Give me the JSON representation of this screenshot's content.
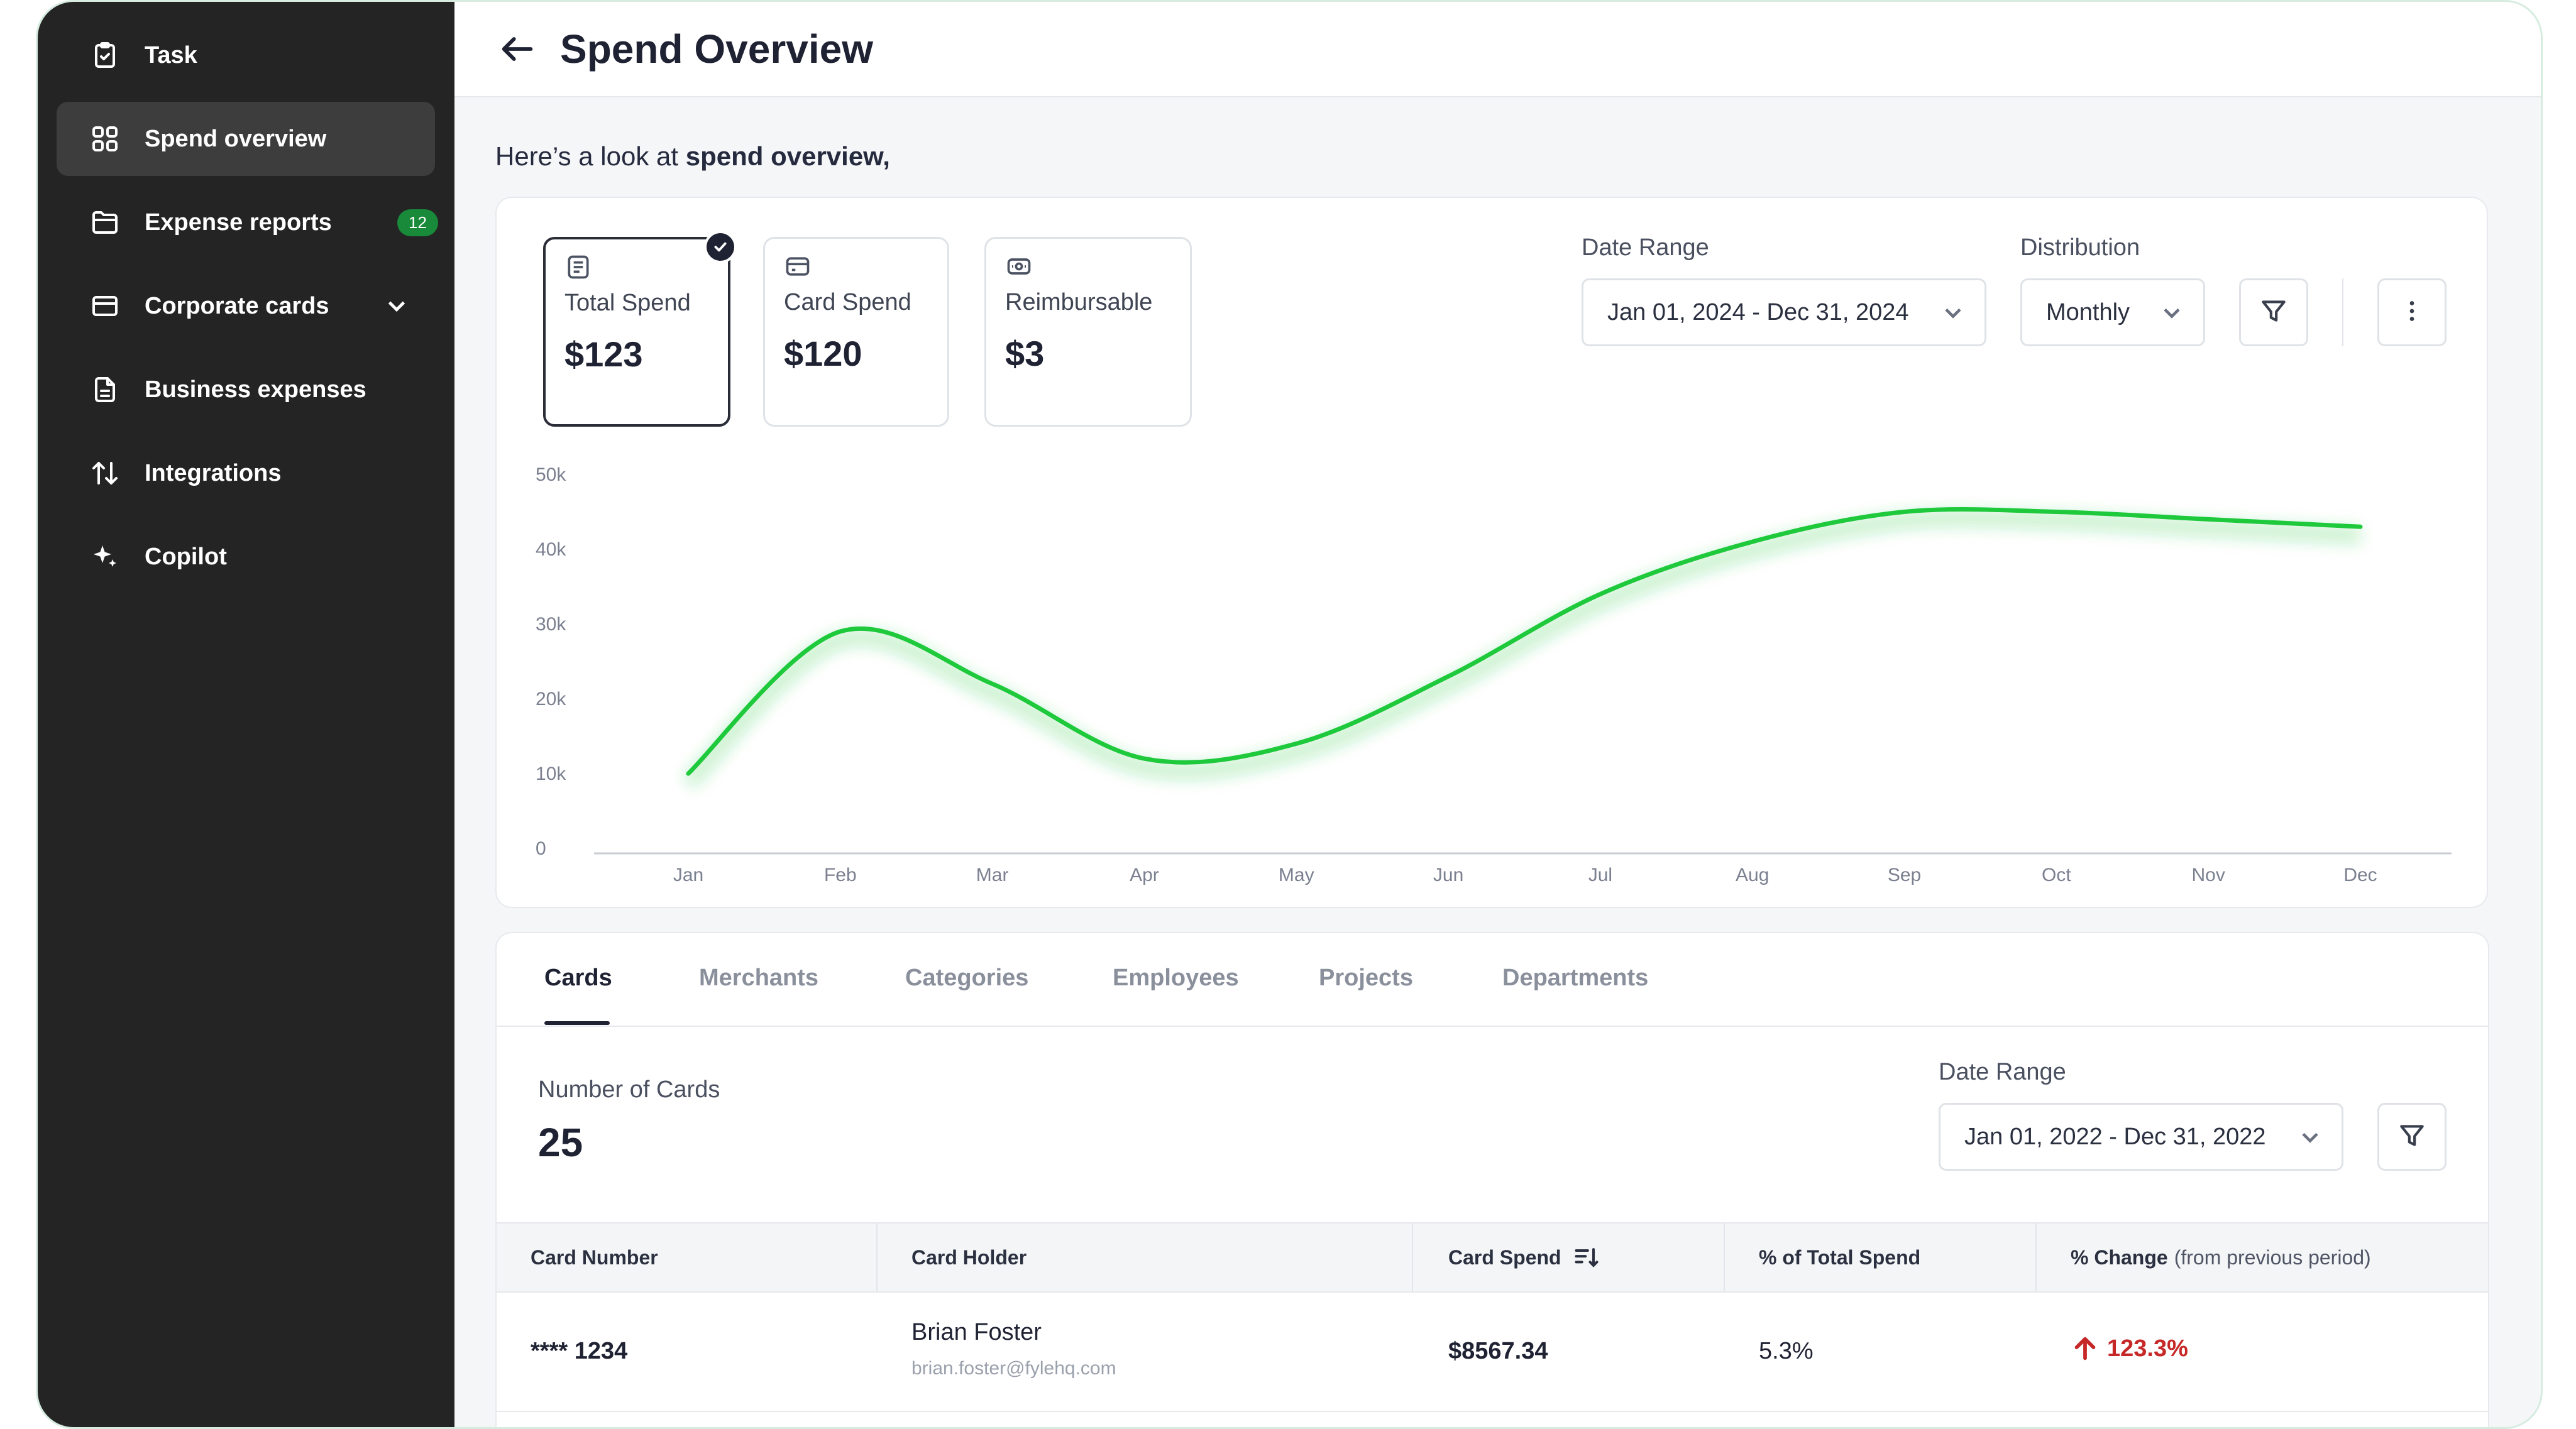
{
  "sidebar": {
    "items": [
      {
        "label": "Task",
        "icon": "clipboard-check-icon"
      },
      {
        "label": "Spend overview",
        "icon": "grid-icon",
        "active": true
      },
      {
        "label": "Expense reports",
        "icon": "folder-icon",
        "badge": "12"
      },
      {
        "label": "Corporate cards",
        "icon": "credit-card-icon"
      },
      {
        "label": "Business expenses",
        "icon": "document-icon"
      },
      {
        "label": "Integrations",
        "icon": "arrows-up-down-icon"
      },
      {
        "label": "Copilot",
        "icon": "sparkle-icon"
      }
    ]
  },
  "header": {
    "title": "Spend Overview"
  },
  "intro": {
    "prefix": "Here’s a look at ",
    "bold": "spend overview,"
  },
  "metrics": [
    {
      "label": "Total Spend",
      "value": "$123",
      "selected": true
    },
    {
      "label": "Card Spend",
      "value": "$120",
      "selected": false
    },
    {
      "label": "Reimbursable",
      "value": "$3",
      "selected": false
    }
  ],
  "filters": {
    "date_range_label": "Date Range",
    "date_range_value": "Jan 01, 2024 - Dec 31, 2024",
    "distribution_label": "Distribution",
    "distribution_value": "Monthly"
  },
  "chart_data": {
    "type": "line",
    "categories": [
      "Jan",
      "Feb",
      "Mar",
      "Apr",
      "May",
      "Jun",
      "Jul",
      "Aug",
      "Sep",
      "Oct",
      "Nov",
      "Dec"
    ],
    "series": [
      {
        "values": [
          10000,
          29000,
          22000,
          12000,
          14000,
          23000,
          34000,
          41000,
          45000,
          45000,
          44000,
          43000
        ]
      }
    ],
    "y_ticks": [
      "0",
      "10k",
      "20k",
      "30k",
      "40k",
      "50k"
    ],
    "ylim": [
      0,
      50000
    ],
    "grid": false,
    "colors": {
      "line": "#1ec93c"
    }
  },
  "table": {
    "tabs": [
      "Cards",
      "Merchants",
      "Categories",
      "Employees",
      "Projects",
      "Departments"
    ],
    "active_tab": "Cards",
    "count_label": "Number of Cards",
    "count_value": "25",
    "date_range_label": "Date Range",
    "date_range_value": "Jan 01, 2022 - Dec 31, 2022",
    "columns": {
      "card_number": "Card Number",
      "card_holder": "Card Holder",
      "card_spend": "Card Spend",
      "pct_total": "% of Total Spend",
      "pct_change": "% Change",
      "pct_change_note": "(from previous period)"
    },
    "rows": [
      {
        "card_number": "**** 1234",
        "holder_name": "Brian Foster",
        "holder_email": "brian.foster@fylehq.com",
        "card_spend": "$8567.34",
        "pct_total": "5.3%",
        "pct_change": "123.3%"
      }
    ]
  },
  "colors": {
    "accent": "#1ec93c",
    "sidebar": "#242424",
    "negative": "#c62828",
    "badge": "#188a3a"
  }
}
